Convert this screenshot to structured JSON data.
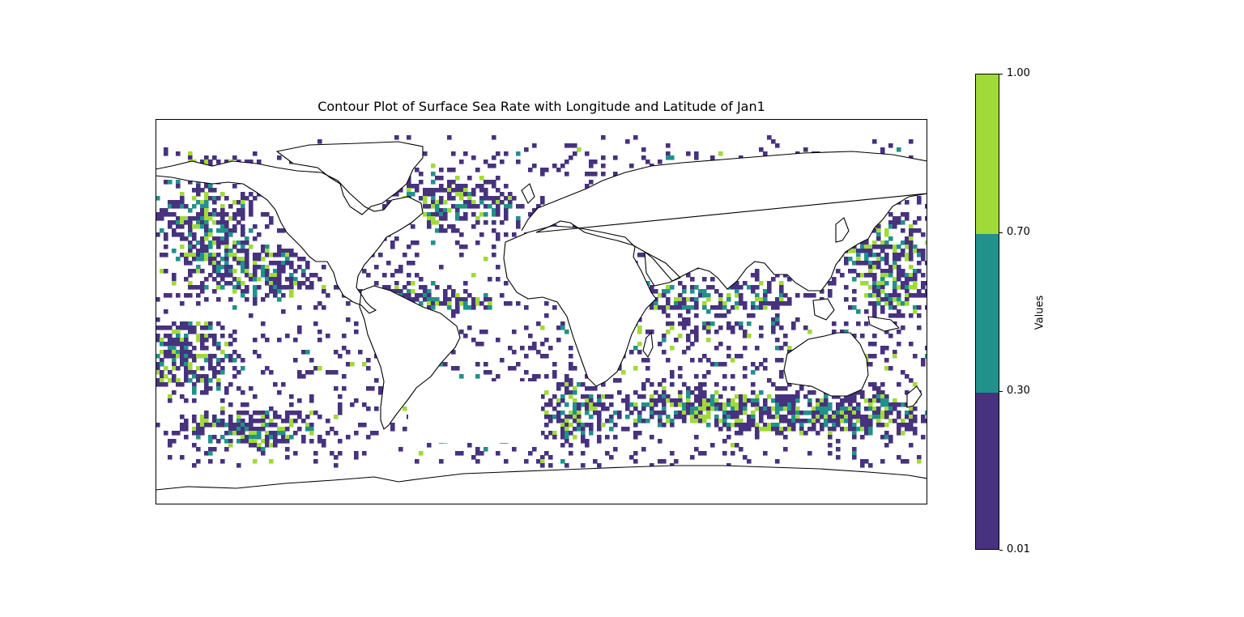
{
  "chart": {
    "title": "Contour Plot of Surface Sea Rate with Longitude and Latitude of Jan1",
    "colorbar_label": "Values"
  },
  "colorbar": {
    "levels": [
      {
        "label": "1.00",
        "value": 1.0
      },
      {
        "label": "0.70",
        "value": 0.7
      },
      {
        "label": "0.30",
        "value": 0.3
      },
      {
        "label": "0.01",
        "value": 0.01
      }
    ],
    "bands": [
      {
        "from": 0.01,
        "to": 0.3,
        "color": "#46327e"
      },
      {
        "from": 0.3,
        "to": 0.7,
        "color": "#21918c"
      },
      {
        "from": 0.7,
        "to": 1.0,
        "color": "#a0da39"
      }
    ]
  },
  "map": {
    "type": "filled-contour",
    "projection": "PlateCarree",
    "lon_range": [
      -180,
      180
    ],
    "lat_range": [
      -90,
      90
    ],
    "coastline_color": "#000000",
    "background_color": "#ffffff"
  }
}
